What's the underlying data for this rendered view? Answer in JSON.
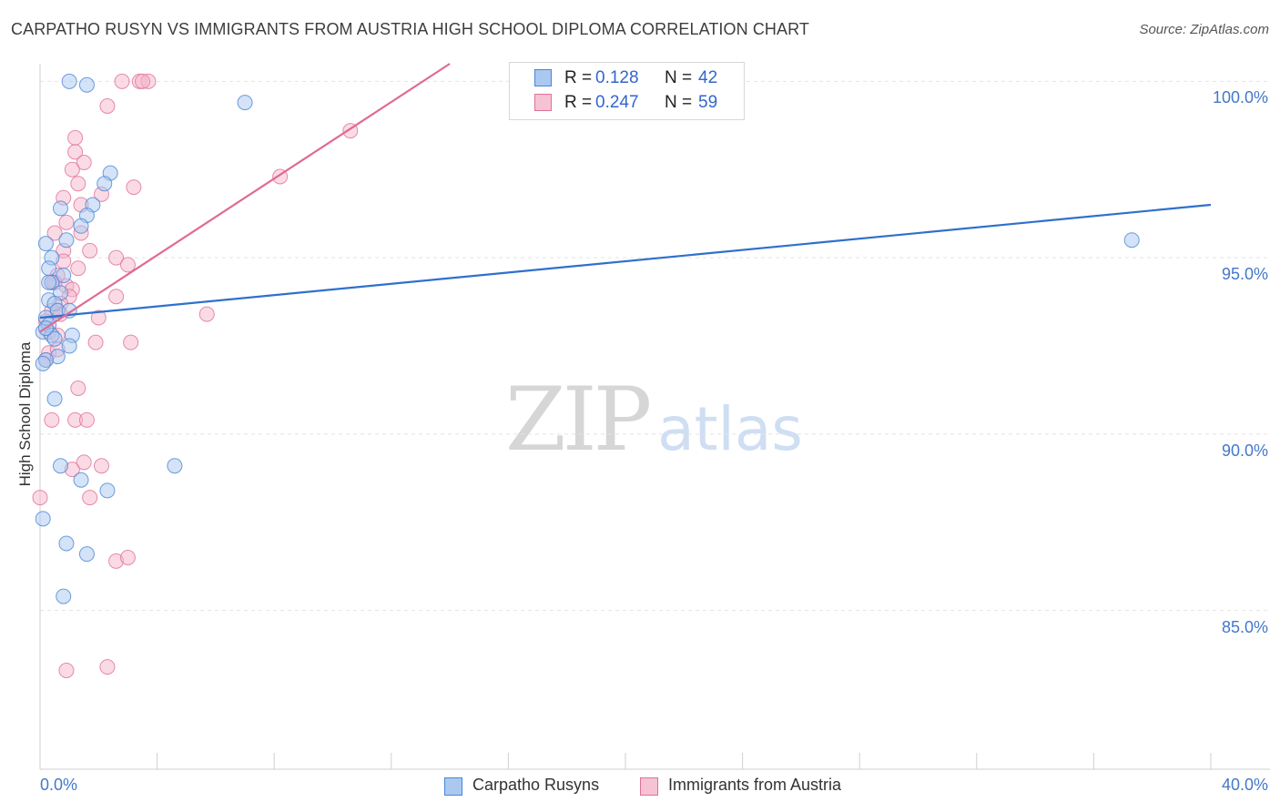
{
  "title": "CARPATHO RUSYN VS IMMIGRANTS FROM AUSTRIA HIGH SCHOOL DIPLOMA CORRELATION CHART",
  "source": "Source: ZipAtlas.com",
  "watermark": {
    "zip": "ZIP",
    "atlas": "atlas"
  },
  "colors": {
    "blue": "#4a86d8",
    "blue_fill": "#aac8f0",
    "pink": "#e07099",
    "pink_fill": "#f5b8cc",
    "axis_text": "#4477cc",
    "grid": "#e4e4e4"
  },
  "legend": {
    "rows": [
      {
        "r_label": "R =",
        "r_value": "0.128",
        "n_label": "N =",
        "n_value": "42"
      },
      {
        "r_label": "R =",
        "r_value": "0.247",
        "n_label": "N =",
        "n_value": "59"
      }
    ]
  },
  "bottom_legend": [
    "Carpatho Rusyns",
    "Immigrants from Austria"
  ],
  "chart_data": {
    "type": "scatter",
    "title": "CARPATHO RUSYN VS IMMIGRANTS FROM AUSTRIA HIGH SCHOOL DIPLOMA CORRELATION CHART",
    "xlabel": "",
    "ylabel": "High School Diploma",
    "xlim": [
      0,
      40
    ],
    "ylim": [
      80.5,
      100.5
    ],
    "x_tick_labels": [
      "0.0%",
      "40.0%"
    ],
    "y_ticks": [
      85,
      90,
      95,
      100
    ],
    "y_tick_labels": [
      "85.0%",
      "90.0%",
      "95.0%",
      "100.0%"
    ],
    "grid": true,
    "legend_position": "top-center",
    "series": [
      {
        "name": "Carpatho Rusyns",
        "color": "blue",
        "R": 0.128,
        "N": 42,
        "trend": {
          "x": [
            0,
            40
          ],
          "y": [
            93.3,
            96.5
          ]
        },
        "points": [
          [
            1.0,
            100.0
          ],
          [
            1.6,
            99.9
          ],
          [
            7.0,
            99.4
          ],
          [
            2.4,
            97.4
          ],
          [
            2.2,
            97.1
          ],
          [
            0.7,
            96.4
          ],
          [
            1.8,
            96.5
          ],
          [
            1.6,
            96.2
          ],
          [
            1.4,
            95.9
          ],
          [
            0.9,
            95.5
          ],
          [
            0.2,
            95.4
          ],
          [
            0.4,
            95.0
          ],
          [
            0.3,
            94.7
          ],
          [
            0.8,
            94.5
          ],
          [
            0.4,
            94.3
          ],
          [
            0.7,
            94.0
          ],
          [
            0.3,
            93.8
          ],
          [
            0.5,
            93.7
          ],
          [
            0.6,
            93.5
          ],
          [
            1.0,
            93.5
          ],
          [
            0.2,
            93.3
          ],
          [
            0.3,
            93.1
          ],
          [
            0.1,
            92.9
          ],
          [
            0.4,
            92.8
          ],
          [
            1.1,
            92.8
          ],
          [
            0.5,
            92.7
          ],
          [
            1.0,
            92.5
          ],
          [
            0.6,
            92.2
          ],
          [
            0.2,
            92.1
          ],
          [
            0.1,
            92.0
          ],
          [
            0.5,
            91.0
          ],
          [
            0.7,
            89.1
          ],
          [
            1.4,
            88.7
          ],
          [
            2.3,
            88.4
          ],
          [
            4.6,
            89.1
          ],
          [
            0.1,
            87.6
          ],
          [
            0.9,
            86.9
          ],
          [
            1.6,
            86.6
          ],
          [
            0.8,
            85.4
          ],
          [
            37.3,
            95.5
          ],
          [
            0.3,
            94.3
          ],
          [
            0.2,
            93.0
          ]
        ]
      },
      {
        "name": "Immigrants from Austria",
        "color": "pink",
        "R": 0.247,
        "N": 59,
        "trend": {
          "x": [
            0,
            14
          ],
          "y": [
            92.9,
            100.5
          ]
        },
        "points": [
          [
            2.8,
            100.0
          ],
          [
            3.4,
            100.0
          ],
          [
            3.7,
            100.0
          ],
          [
            3.5,
            100.0
          ],
          [
            2.3,
            99.3
          ],
          [
            1.2,
            98.4
          ],
          [
            1.2,
            98.0
          ],
          [
            10.6,
            98.6
          ],
          [
            1.5,
            97.7
          ],
          [
            1.1,
            97.5
          ],
          [
            8.2,
            97.3
          ],
          [
            1.3,
            97.1
          ],
          [
            3.2,
            97.0
          ],
          [
            0.8,
            96.7
          ],
          [
            2.1,
            96.8
          ],
          [
            1.4,
            96.5
          ],
          [
            0.9,
            96.0
          ],
          [
            0.5,
            95.7
          ],
          [
            1.4,
            95.7
          ],
          [
            1.7,
            95.2
          ],
          [
            0.8,
            95.2
          ],
          [
            2.6,
            95.0
          ],
          [
            0.8,
            94.9
          ],
          [
            3.0,
            94.8
          ],
          [
            1.3,
            94.7
          ],
          [
            0.6,
            94.5
          ],
          [
            0.4,
            94.3
          ],
          [
            0.9,
            94.2
          ],
          [
            1.1,
            94.1
          ],
          [
            1.0,
            93.9
          ],
          [
            2.6,
            93.9
          ],
          [
            0.7,
            93.7
          ],
          [
            0.4,
            93.5
          ],
          [
            0.6,
            93.5
          ],
          [
            0.7,
            93.4
          ],
          [
            2.0,
            93.3
          ],
          [
            5.7,
            93.4
          ],
          [
            0.2,
            93.2
          ],
          [
            0.3,
            92.9
          ],
          [
            0.6,
            92.8
          ],
          [
            1.9,
            92.6
          ],
          [
            3.1,
            92.6
          ],
          [
            0.3,
            92.3
          ],
          [
            0.6,
            92.4
          ],
          [
            0.2,
            92.1
          ],
          [
            1.3,
            91.3
          ],
          [
            0.4,
            90.4
          ],
          [
            1.2,
            90.4
          ],
          [
            1.6,
            90.4
          ],
          [
            1.1,
            89.0
          ],
          [
            1.5,
            89.2
          ],
          [
            2.1,
            89.1
          ],
          [
            1.7,
            88.2
          ],
          [
            0.0,
            88.2
          ],
          [
            2.6,
            86.4
          ],
          [
            3.0,
            86.5
          ],
          [
            0.9,
            83.3
          ],
          [
            2.3,
            83.4
          ],
          [
            0.5,
            94.3
          ]
        ]
      }
    ]
  }
}
